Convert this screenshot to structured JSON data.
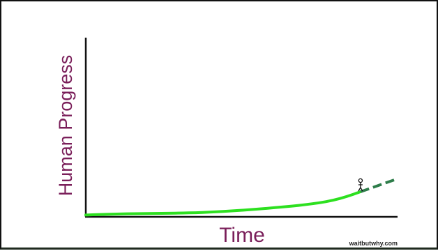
{
  "chart_data": {
    "type": "line",
    "title": "",
    "xlabel": "Time",
    "ylabel": "Human Progress",
    "series": [
      {
        "name": "",
        "x": [
          0,
          5,
          10,
          15,
          20,
          25,
          30,
          35,
          40,
          45,
          50,
          55,
          60,
          65,
          70,
          75,
          80,
          85,
          90,
          95,
          100
        ],
        "values": [
          1.0,
          1.3,
          1.5,
          1.7,
          1.8,
          1.9,
          2.0,
          2.1,
          2.3,
          2.6,
          3.0,
          3.5,
          4.0,
          4.6,
          5.3,
          6.0,
          6.8,
          7.8,
          9.2,
          11.3,
          14.0
        ]
      }
    ],
    "projection": {
      "x": [
        100,
        113
      ],
      "values": [
        14.0,
        21.0
      ]
    },
    "figure_x": 100,
    "xlim": [
      0,
      115
    ],
    "ylim": [
      0,
      100
    ],
    "grid": false,
    "colors": {
      "line": "#2de020",
      "projection": "#2e7d4a",
      "axis": "#111111",
      "label": "#7a1f5a"
    },
    "credit": "waitbutwhy.com"
  }
}
